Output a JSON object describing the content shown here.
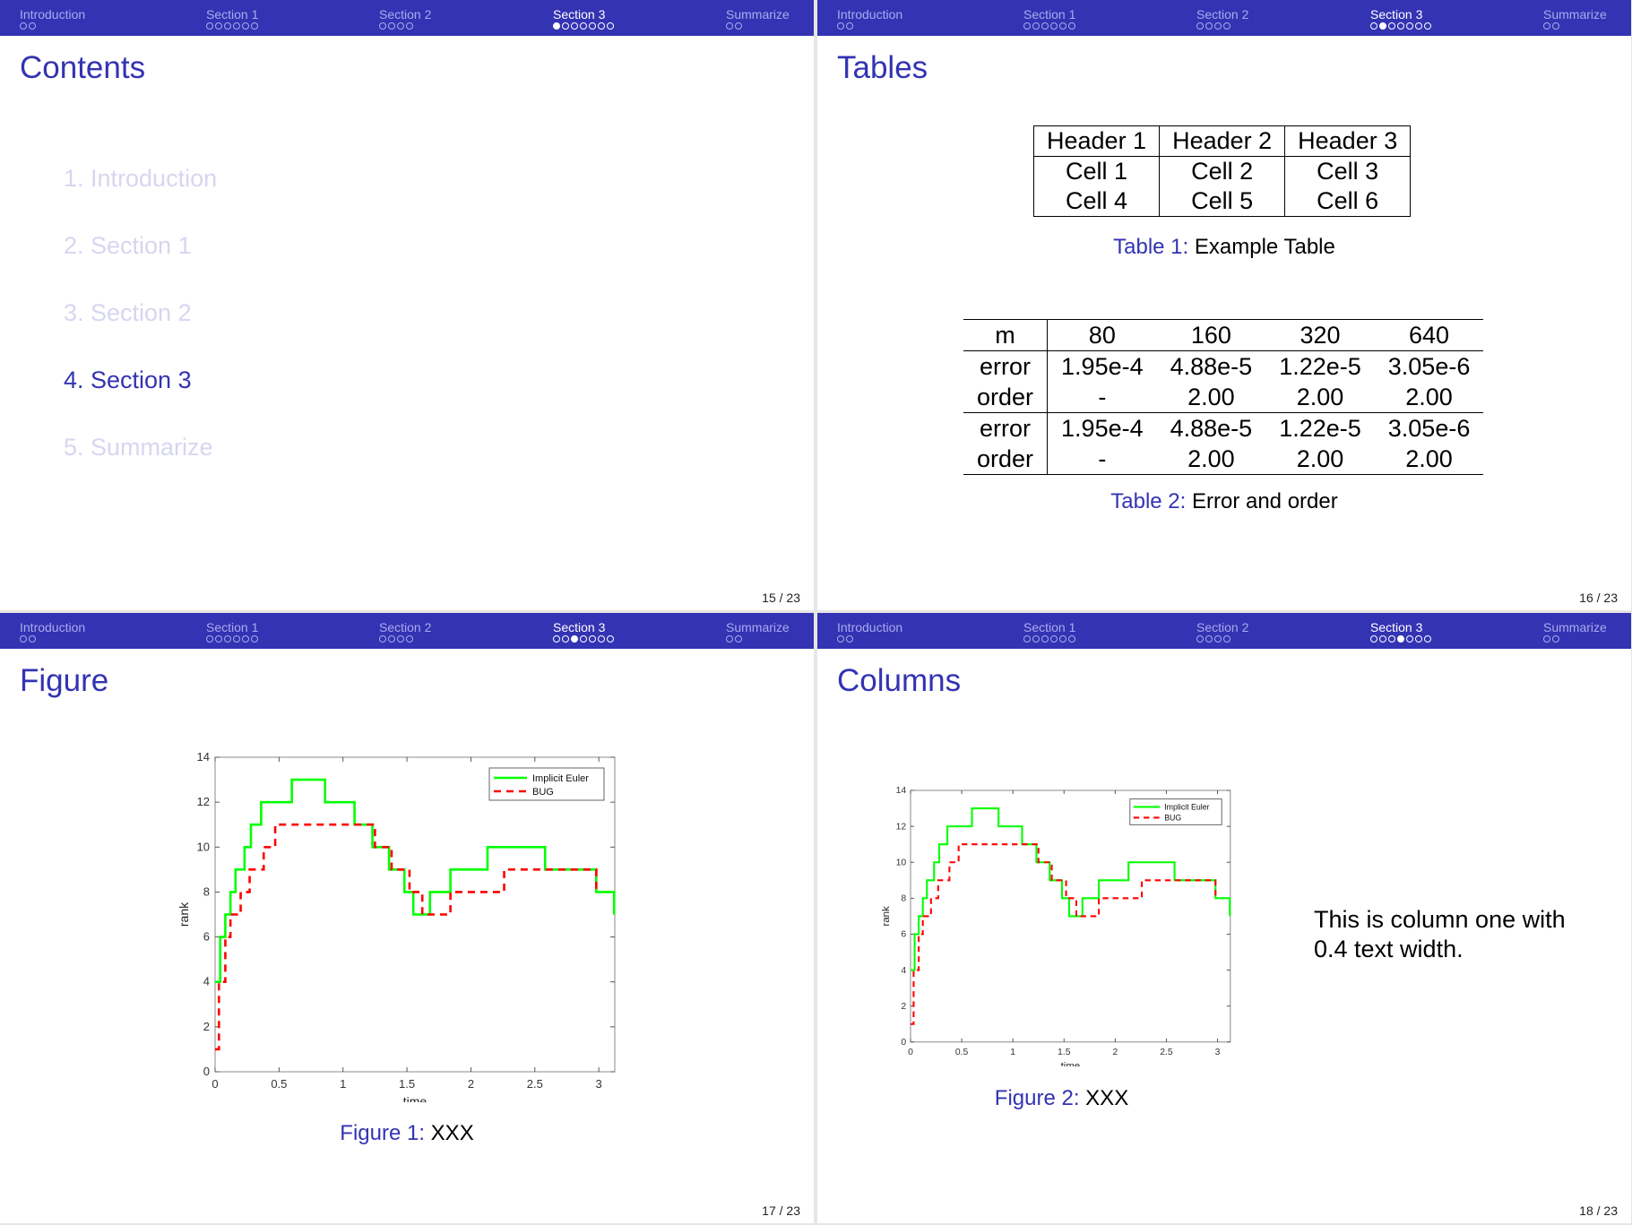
{
  "nav": {
    "sections": [
      {
        "label": "Introduction",
        "dots": 2
      },
      {
        "label": "Section 1",
        "dots": 6
      },
      {
        "label": "Section 2",
        "dots": 4
      },
      {
        "label": "Section 3",
        "dots": 7
      },
      {
        "label": "Summarize",
        "dots": 2
      }
    ]
  },
  "slides": [
    {
      "title": "Contents",
      "page": "15 / 23",
      "active_dot": 0
    },
    {
      "title": "Tables",
      "page": "16 / 23",
      "active_dot": 1
    },
    {
      "title": "Figure",
      "page": "17 / 23",
      "active_dot": 2
    },
    {
      "title": "Columns",
      "page": "18 / 23",
      "active_dot": 3
    }
  ],
  "toc": {
    "items": [
      "1. Introduction",
      "2. Section 1",
      "3. Section 2",
      "4. Section 3",
      "5. Summarize"
    ],
    "current_index": 3
  },
  "table1": {
    "headers": [
      "Header 1",
      "Header 2",
      "Header 3"
    ],
    "rows": [
      [
        "Cell 1",
        "Cell 2",
        "Cell 3"
      ],
      [
        "Cell 4",
        "Cell 5",
        "Cell 6"
      ]
    ],
    "caption_label": "Table 1:",
    "caption_text": "Example Table"
  },
  "table2": {
    "header": [
      "m",
      "80",
      "160",
      "320",
      "640"
    ],
    "rows": [
      [
        "error",
        "1.95e-4",
        "4.88e-5",
        "1.22e-5",
        "3.05e-6"
      ],
      [
        "order",
        "-",
        "2.00",
        "2.00",
        "2.00"
      ],
      [
        "error",
        "1.95e-4",
        "4.88e-5",
        "1.22e-5",
        "3.05e-6"
      ],
      [
        "order",
        "-",
        "2.00",
        "2.00",
        "2.00"
      ]
    ],
    "caption_label": "Table 2:",
    "caption_text": "Error and order"
  },
  "figure1": {
    "caption_label": "Figure 1:",
    "caption_text": "XXX"
  },
  "figure2": {
    "caption_label": "Figure 2:",
    "caption_text": "XXX"
  },
  "columns": {
    "text": "This is column one with 0.4 text width."
  },
  "colors": {
    "theme": "#3333b3",
    "implicit_euler": "#00ff00",
    "bug": "#ff0000"
  },
  "chart_data": {
    "type": "line",
    "xlabel": "time",
    "ylabel": "rank",
    "xlim": [
      0,
      3.125
    ],
    "ylim": [
      0,
      14
    ],
    "xticks": [
      0,
      0.5,
      1,
      1.5,
      2,
      2.5,
      3
    ],
    "xtick_labels": [
      "0",
      "0.5",
      "1",
      "1.5",
      "2",
      "2.5",
      "3"
    ],
    "yticks": [
      0,
      2,
      4,
      6,
      8,
      10,
      12,
      14
    ],
    "ytick_labels": [
      "0",
      "2",
      "4",
      "6",
      "8",
      "10",
      "12",
      "14"
    ],
    "legend": [
      "Implicit Euler",
      "BUG"
    ],
    "legend_position": "top-right",
    "series": [
      {
        "name": "Implicit Euler",
        "style": "solid",
        "color": "#00ff00",
        "points": [
          [
            0,
            4
          ],
          [
            0.04,
            6
          ],
          [
            0.08,
            7
          ],
          [
            0.12,
            8
          ],
          [
            0.16,
            9
          ],
          [
            0.23,
            10
          ],
          [
            0.28,
            11
          ],
          [
            0.36,
            12
          ],
          [
            0.6,
            13
          ],
          [
            0.86,
            12
          ],
          [
            1.09,
            11
          ],
          [
            1.23,
            10
          ],
          [
            1.36,
            9
          ],
          [
            1.48,
            8
          ],
          [
            1.55,
            7
          ],
          [
            1.68,
            8
          ],
          [
            1.84,
            9
          ],
          [
            2.13,
            10
          ],
          [
            2.58,
            9
          ],
          [
            2.98,
            8
          ],
          [
            3.12,
            7
          ]
        ]
      },
      {
        "name": "BUG",
        "style": "dashed",
        "color": "#ff0000",
        "points": [
          [
            0,
            1
          ],
          [
            0.03,
            4
          ],
          [
            0.08,
            6
          ],
          [
            0.12,
            7
          ],
          [
            0.2,
            8
          ],
          [
            0.27,
            9
          ],
          [
            0.38,
            10
          ],
          [
            0.47,
            11
          ],
          [
            1.14,
            11
          ],
          [
            1.25,
            10
          ],
          [
            1.38,
            9
          ],
          [
            1.52,
            8
          ],
          [
            1.62,
            7
          ],
          [
            1.84,
            8
          ],
          [
            2.26,
            9
          ],
          [
            2.98,
            8
          ]
        ]
      }
    ]
  }
}
